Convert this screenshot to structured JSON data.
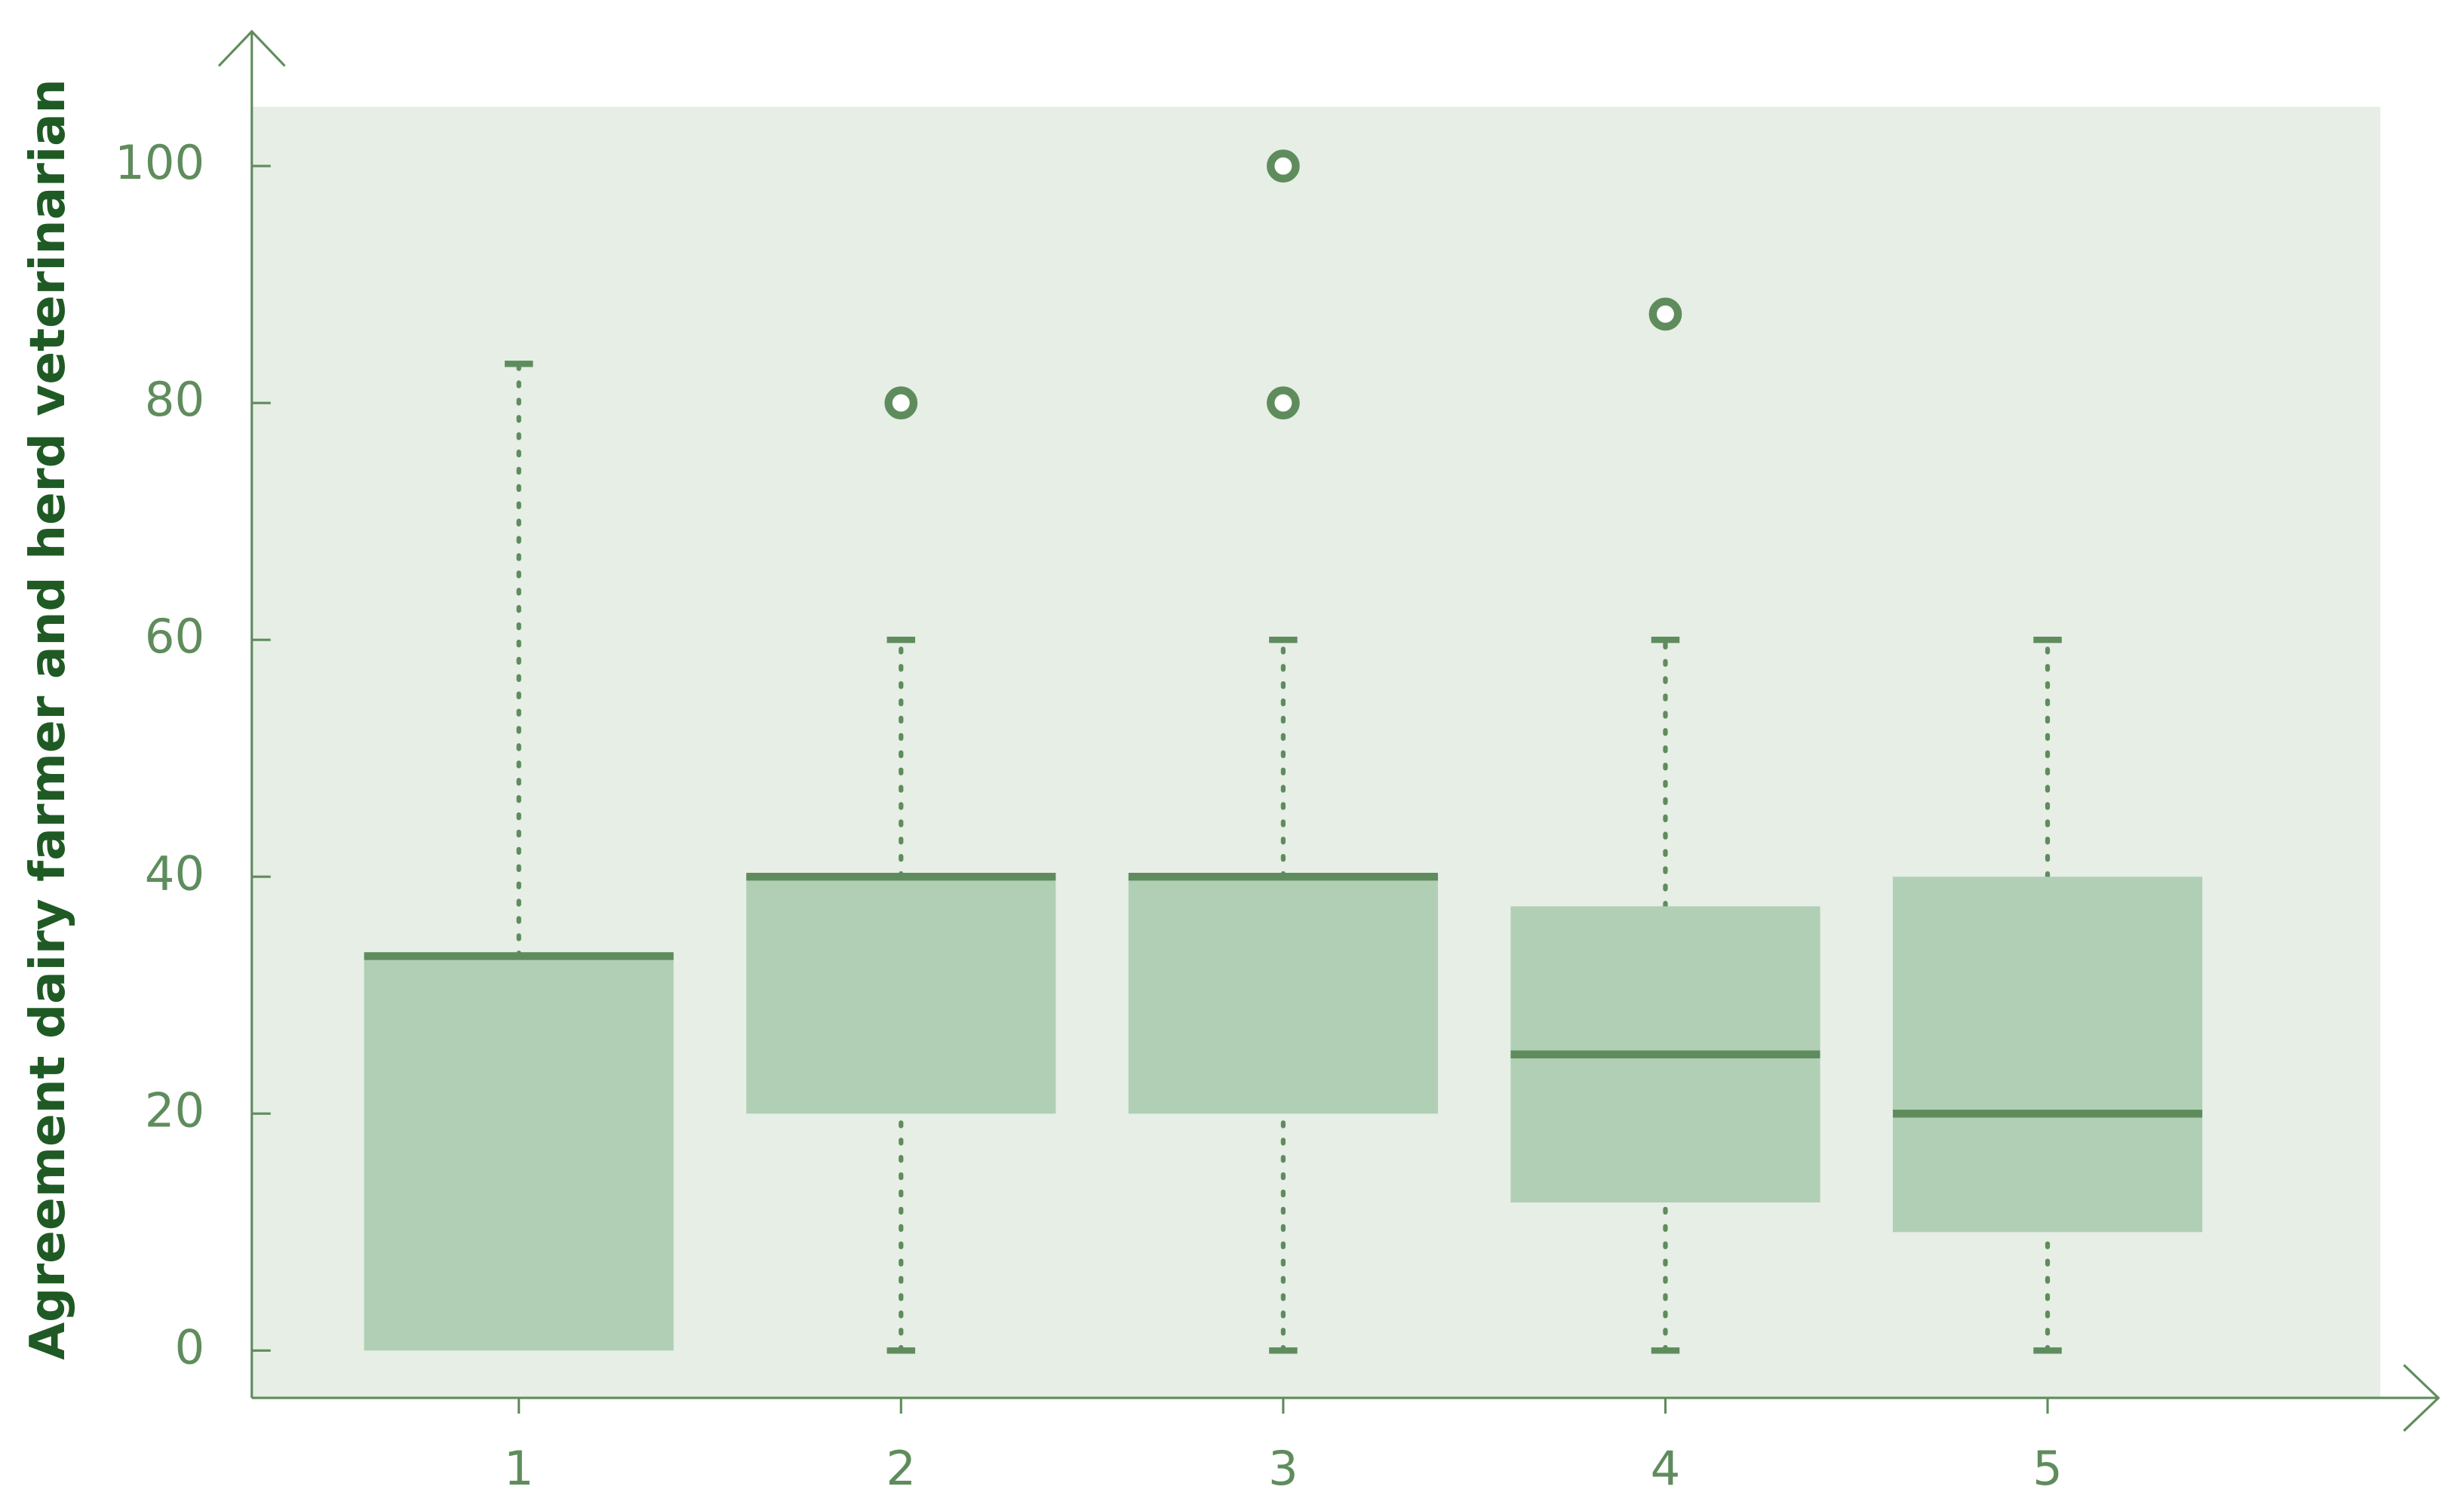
{
  "chart_data": {
    "type": "box",
    "ylabel": "Agreement dairy farmer and herd veterinarian",
    "categories": [
      "1",
      "2",
      "3",
      "4",
      "5"
    ],
    "boxes": [
      {
        "min": 0,
        "q1": 0,
        "median": 33.3,
        "q3": 33.3,
        "max": 83.3,
        "outliers": []
      },
      {
        "min": 0,
        "q1": 20,
        "median": 40,
        "q3": 40,
        "max": 60,
        "outliers": [
          80
        ]
      },
      {
        "min": 0,
        "q1": 20,
        "median": 40,
        "q3": 40,
        "max": 60,
        "outliers": [
          80,
          100
        ]
      },
      {
        "min": 0,
        "q1": 12.5,
        "median": 25,
        "q3": 37.5,
        "max": 60,
        "outliers": [
          87.5
        ]
      },
      {
        "min": 0,
        "q1": 10,
        "median": 20,
        "q3": 40,
        "max": 60,
        "outliers": []
      }
    ],
    "color": "#b0cfb5",
    "line_color": "#5f8c5c",
    "background": "#e6eee6",
    "ylim": [
      -4,
      105
    ],
    "yticks": [
      0,
      20,
      40,
      60,
      80,
      100
    ]
  }
}
